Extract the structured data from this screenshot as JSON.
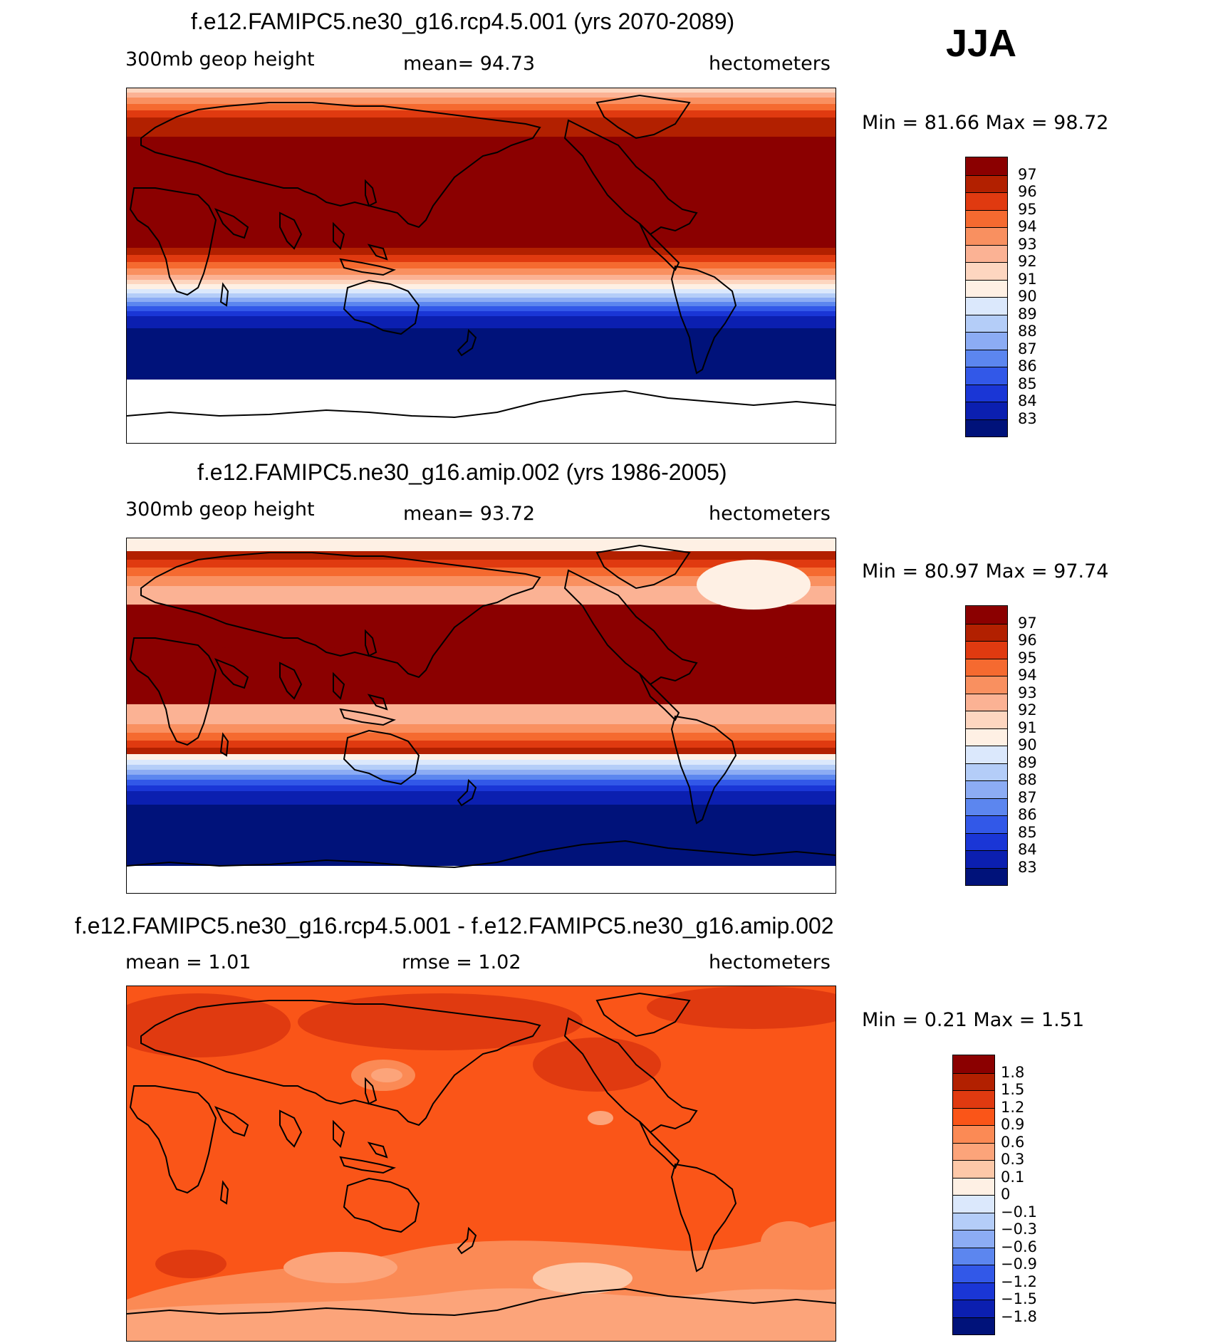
{
  "season": "JJA",
  "panels": [
    {
      "id": "future",
      "title": "f.e12.FAMIPC5.ne30_g16.rcp4.5.001 (yrs 2070-2089)",
      "left_label": "300mb geop height",
      "center_label": "mean=  94.73",
      "right_label": "hectometers",
      "min_max": "Min =   81.66  Max =   98.72",
      "colorbar_labels": [
        "97",
        "96",
        "95",
        "94",
        "93",
        "92",
        "91",
        "90",
        "89",
        "88",
        "87",
        "86",
        "85",
        "84",
        "83"
      ],
      "colors": [
        "#8b0000",
        "#b22000",
        "#e03a10",
        "#f56a30",
        "#f99060",
        "#fbb294",
        "#fdd6c0",
        "#fef0e4",
        "#dbe8fc",
        "#b4cdf8",
        "#8cacf4",
        "#5c86ef",
        "#3258e8",
        "#1a36d6",
        "#0b1fb0",
        "#00127a"
      ],
      "bands": [
        [
          "n1",
          6
        ],
        [
          "n2",
          7
        ],
        [
          "n3",
          9
        ],
        [
          "n4",
          9
        ],
        [
          "n5",
          10
        ],
        [
          "n6",
          12
        ],
        [
          "n7",
          15
        ],
        [
          "p",
          156
        ],
        [
          "s6",
          10
        ],
        [
          "s5",
          10
        ],
        [
          "s4",
          9
        ],
        [
          "s3",
          9
        ],
        [
          "s2",
          7
        ],
        [
          "s1",
          6
        ],
        [
          "c",
          7
        ],
        [
          "b1",
          6
        ],
        [
          "b2",
          6
        ],
        [
          "b3",
          6
        ],
        [
          "b4",
          6
        ],
        [
          "b5",
          7
        ],
        [
          "b6",
          7
        ],
        [
          "b7",
          8
        ],
        [
          "b8",
          9
        ],
        [
          "b9",
          8
        ],
        [
          "b10",
          63
        ]
      ]
    },
    {
      "id": "baseline",
      "title": "f.e12.FAMIPC5.ne30_g16.amip.002 (yrs 1986-2005)",
      "left_label": "300mb geop height",
      "center_label": "mean=  93.72",
      "right_label": "hectometers",
      "min_max": "Min =   80.97  Max =   97.74",
      "colorbar_labels": [
        "97",
        "96",
        "95",
        "94",
        "93",
        "92",
        "91",
        "90",
        "89",
        "88",
        "87",
        "86",
        "85",
        "84",
        "83"
      ],
      "colors": [
        "#8b0000",
        "#b22000",
        "#e03a10",
        "#f56a30",
        "#f99060",
        "#fbb294",
        "#fdd6c0",
        "#fef0e4",
        "#dbe8fc",
        "#b4cdf8",
        "#8cacf4",
        "#5c86ef",
        "#3258e8",
        "#1a36d6",
        "#0b1fb0",
        "#00127a"
      ],
      "bands": [
        [
          "c",
          18
        ],
        [
          "n6",
          12
        ],
        [
          "n5",
          11
        ],
        [
          "n4",
          12
        ],
        [
          "n3",
          14
        ],
        [
          "n2",
          26
        ],
        [
          "p",
          140
        ],
        [
          "s2",
          28
        ],
        [
          "s3",
          12
        ],
        [
          "s4",
          11
        ],
        [
          "s5",
          10
        ],
        [
          "s6",
          9
        ],
        [
          "c",
          8
        ],
        [
          "b1",
          7
        ],
        [
          "b2",
          7
        ],
        [
          "b3",
          7
        ],
        [
          "b4",
          7
        ],
        [
          "b5",
          8
        ],
        [
          "b6",
          8
        ],
        [
          "b7",
          9
        ],
        [
          "b8",
          10
        ],
        [
          "b9",
          10
        ],
        [
          "b10",
          75
        ]
      ]
    },
    {
      "id": "difference",
      "title": "f.e12.FAMIPC5.ne30_g16.rcp4.5.001 - f.e12.FAMIPC5.ne30_g16.amip.002",
      "left_label": "mean =    1.01",
      "center_label": "rmse =    1.02",
      "right_label": "hectometers",
      "min_max": "Min =    0.21  Max =    1.51",
      "colorbar_labels": [
        "1.8",
        "1.5",
        "1.2",
        "0.9",
        "0.6",
        "0.3",
        "0.1",
        "0",
        "−0.1",
        "−0.3",
        "−0.6",
        "−0.9",
        "−1.2",
        "−1.5",
        "−1.8"
      ],
      "colors": [
        "#8b0000",
        "#b22000",
        "#e03a10",
        "#fa5518",
        "#fb8a55",
        "#fca47a",
        "#fdc8a8",
        "#fef0e4",
        "#dbe8fc",
        "#b4cdf8",
        "#8cacf4",
        "#5c86ef",
        "#3258e8",
        "#1a36d6",
        "#0b1fb0",
        "#00127a"
      ]
    }
  ]
}
